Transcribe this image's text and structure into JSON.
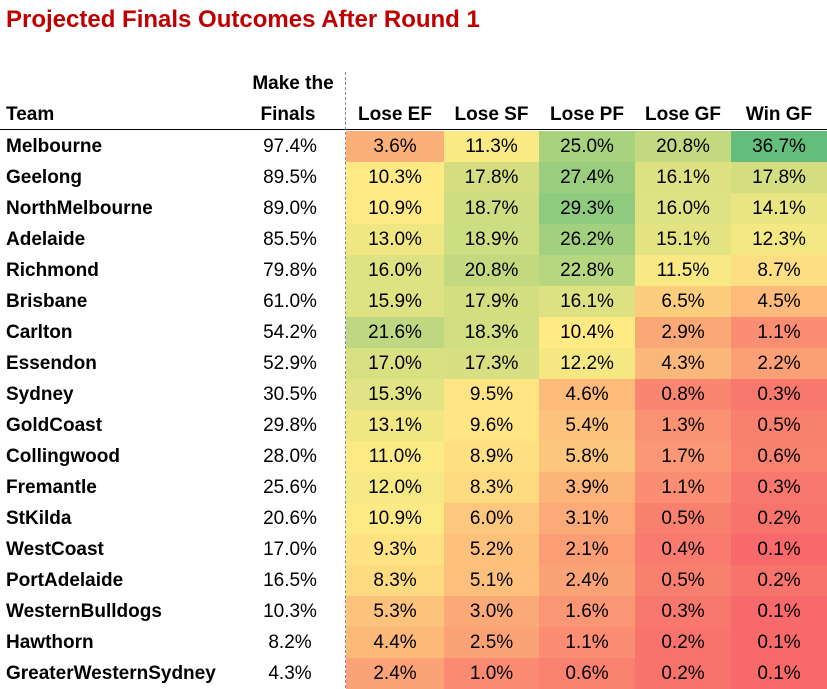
{
  "title": "Projected Finals Outcomes After Round 1",
  "header": {
    "team": "Team",
    "make_finals_line1": "Make the",
    "make_finals_line2": "Finals",
    "lose_ef": "Lose EF",
    "lose_sf": "Lose SF",
    "lose_pf": "Lose PF",
    "lose_gf": "Lose GF",
    "win_gf": "Win GF"
  },
  "chart_data": {
    "type": "table",
    "title": "Projected Finals Outcomes After Round 1",
    "columns": [
      "Team",
      "Make the Finals",
      "Lose EF",
      "Lose SF",
      "Lose PF",
      "Lose GF",
      "Win GF"
    ],
    "heatmap": "red-yellow-green by value",
    "rows": [
      {
        "team": "Melbourne",
        "values": [
          97.4,
          3.6,
          11.3,
          25.0,
          20.8,
          36.7
        ]
      },
      {
        "team": "Geelong",
        "values": [
          89.5,
          10.3,
          17.8,
          27.4,
          16.1,
          17.8
        ]
      },
      {
        "team": "NorthMelbourne",
        "values": [
          89.0,
          10.9,
          18.7,
          29.3,
          16.0,
          14.1
        ]
      },
      {
        "team": "Adelaide",
        "values": [
          85.5,
          13.0,
          18.9,
          26.2,
          15.1,
          12.3
        ]
      },
      {
        "team": "Richmond",
        "values": [
          79.8,
          16.0,
          20.8,
          22.8,
          11.5,
          8.7
        ]
      },
      {
        "team": "Brisbane",
        "values": [
          61.0,
          15.9,
          17.9,
          16.1,
          6.5,
          4.5
        ]
      },
      {
        "team": "Carlton",
        "values": [
          54.2,
          21.6,
          18.3,
          10.4,
          2.9,
          1.1
        ]
      },
      {
        "team": "Essendon",
        "values": [
          52.9,
          17.0,
          17.3,
          12.2,
          4.3,
          2.2
        ]
      },
      {
        "team": "Sydney",
        "values": [
          30.5,
          15.3,
          9.5,
          4.6,
          0.8,
          0.3
        ]
      },
      {
        "team": "GoldCoast",
        "values": [
          29.8,
          13.1,
          9.6,
          5.4,
          1.3,
          0.5
        ]
      },
      {
        "team": "Collingwood",
        "values": [
          28.0,
          11.0,
          8.9,
          5.8,
          1.7,
          0.6
        ]
      },
      {
        "team": "Fremantle",
        "values": [
          25.6,
          12.0,
          8.3,
          3.9,
          1.1,
          0.3
        ]
      },
      {
        "team": "StKilda",
        "values": [
          20.6,
          10.9,
          6.0,
          3.1,
          0.5,
          0.2
        ]
      },
      {
        "team": "WestCoast",
        "values": [
          17.0,
          9.3,
          5.2,
          2.1,
          0.4,
          0.1
        ]
      },
      {
        "team": "PortAdelaide",
        "values": [
          16.5,
          8.3,
          5.1,
          2.4,
          0.5,
          0.2
        ]
      },
      {
        "team": "WesternBulldogs",
        "values": [
          10.3,
          5.3,
          3.0,
          1.6,
          0.3,
          0.1
        ]
      },
      {
        "team": "Hawthorn",
        "values": [
          8.2,
          4.4,
          2.5,
          1.1,
          0.2,
          0.1
        ]
      },
      {
        "team": "GreaterWesternSydney",
        "values": [
          4.3,
          2.4,
          1.0,
          0.6,
          0.2,
          0.1
        ]
      }
    ]
  }
}
